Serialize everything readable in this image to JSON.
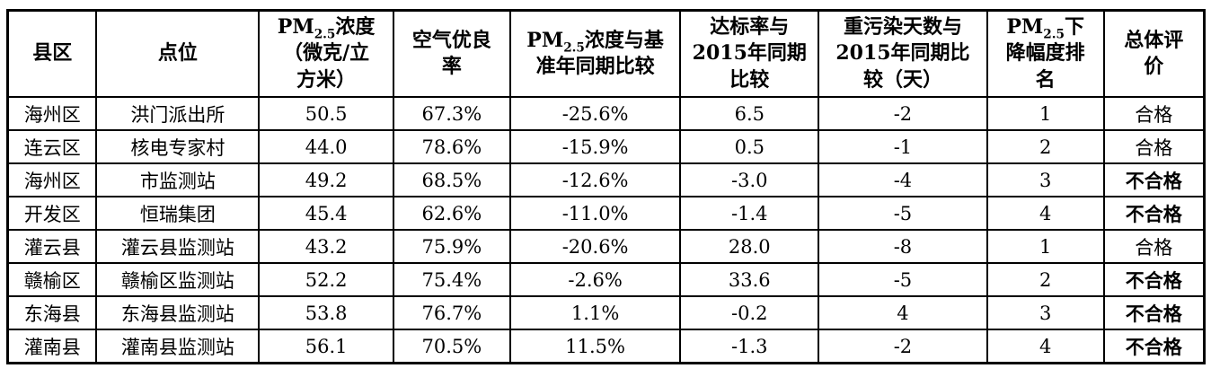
{
  "table": {
    "columns": [
      {
        "id": "district",
        "label_parts": [
          {
            "t": "县区"
          }
        ]
      },
      {
        "id": "site",
        "label_parts": [
          {
            "t": "点位"
          }
        ]
      },
      {
        "id": "pm25",
        "label_parts": [
          {
            "t": "PM"
          },
          {
            "t": "2.5",
            "sub": true
          },
          {
            "t": "浓度\n（微克/立\n方米）"
          }
        ]
      },
      {
        "id": "good_rate",
        "label_parts": [
          {
            "t": "空气优良\n率"
          }
        ]
      },
      {
        "id": "pm25_vs_base",
        "label_parts": [
          {
            "t": "PM"
          },
          {
            "t": "2.5",
            "sub": true
          },
          {
            "t": "浓度与基\n准年同期比较"
          }
        ]
      },
      {
        "id": "attain_vs_2015",
        "label_parts": [
          {
            "t": "达标率与\n2015年同期\n比较"
          }
        ]
      },
      {
        "id": "heavy_days_vs_2015",
        "label_parts": [
          {
            "t": "重污染天数与\n2015年同期比\n较（天）"
          }
        ]
      },
      {
        "id": "pm25_rank",
        "label_parts": [
          {
            "t": "PM"
          },
          {
            "t": "2.5",
            "sub": true
          },
          {
            "t": "下\n降幅度排\n名"
          }
        ]
      },
      {
        "id": "evaluation",
        "label_parts": [
          {
            "t": "总体评\n价"
          }
        ]
      }
    ],
    "pass_label": "合格",
    "fail_label": "不合格",
    "rows": [
      {
        "district": "海州区",
        "site": "洪门派出所",
        "pm25": "50.5",
        "good_rate": "67.3%",
        "pm25_vs_base": "-25.6%",
        "attain_vs_2015": "6.5",
        "heavy_days_vs_2015": "-2",
        "pm25_rank": "1",
        "evaluation": "合格"
      },
      {
        "district": "连云区",
        "site": "核电专家村",
        "pm25": "44.0",
        "good_rate": "78.6%",
        "pm25_vs_base": "-15.9%",
        "attain_vs_2015": "0.5",
        "heavy_days_vs_2015": "-1",
        "pm25_rank": "2",
        "evaluation": "合格"
      },
      {
        "district": "海州区",
        "site": "市监测站",
        "pm25": "49.2",
        "good_rate": "68.5%",
        "pm25_vs_base": "-12.6%",
        "attain_vs_2015": "-3.0",
        "heavy_days_vs_2015": "-4",
        "pm25_rank": "3",
        "evaluation": "不合格"
      },
      {
        "district": "开发区",
        "site": "恒瑞集团",
        "pm25": "45.4",
        "good_rate": "62.6%",
        "pm25_vs_base": "-11.0%",
        "attain_vs_2015": "-1.4",
        "heavy_days_vs_2015": "-5",
        "pm25_rank": "4",
        "evaluation": "不合格"
      },
      {
        "district": "灌云县",
        "site": "灌云县监测站",
        "pm25": "43.2",
        "good_rate": "75.9%",
        "pm25_vs_base": "-20.6%",
        "attain_vs_2015": "28.0",
        "heavy_days_vs_2015": "-8",
        "pm25_rank": "1",
        "evaluation": "合格"
      },
      {
        "district": "赣榆区",
        "site": "赣榆区监测站",
        "pm25": "52.2",
        "good_rate": "75.4%",
        "pm25_vs_base": "-2.6%",
        "attain_vs_2015": "33.6",
        "heavy_days_vs_2015": "-5",
        "pm25_rank": "2",
        "evaluation": "不合格"
      },
      {
        "district": "东海县",
        "site": "东海县监测站",
        "pm25": "53.8",
        "good_rate": "76.7%",
        "pm25_vs_base": "1.1%",
        "attain_vs_2015": "-0.2",
        "heavy_days_vs_2015": "4",
        "pm25_rank": "3",
        "evaluation": "不合格"
      },
      {
        "district": "灌南县",
        "site": "灌南县监测站",
        "pm25": "56.1",
        "good_rate": "70.5%",
        "pm25_vs_base": "11.5%",
        "attain_vs_2015": "-1.3",
        "heavy_days_vs_2015": "-2",
        "pm25_rank": "4",
        "evaluation": "不合格"
      }
    ]
  }
}
